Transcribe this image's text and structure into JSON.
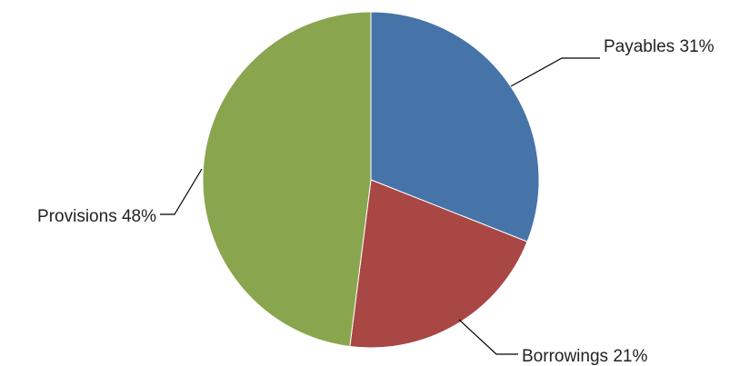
{
  "chart_data": {
    "type": "pie",
    "title": "",
    "start_angle_deg": 0,
    "direction": "clockwise",
    "slices": [
      {
        "name": "Payables",
        "value": 31,
        "label": "Payables 31%",
        "color": "#4674A8"
      },
      {
        "name": "Borrowings",
        "value": 21,
        "label": "Borrowings 21%",
        "color": "#A84744"
      },
      {
        "name": "Provisions",
        "value": 48,
        "label": "Provisions 48%",
        "color": "#89A54E"
      }
    ],
    "legend": "none",
    "label_style": "outside-with-leader-lines"
  }
}
